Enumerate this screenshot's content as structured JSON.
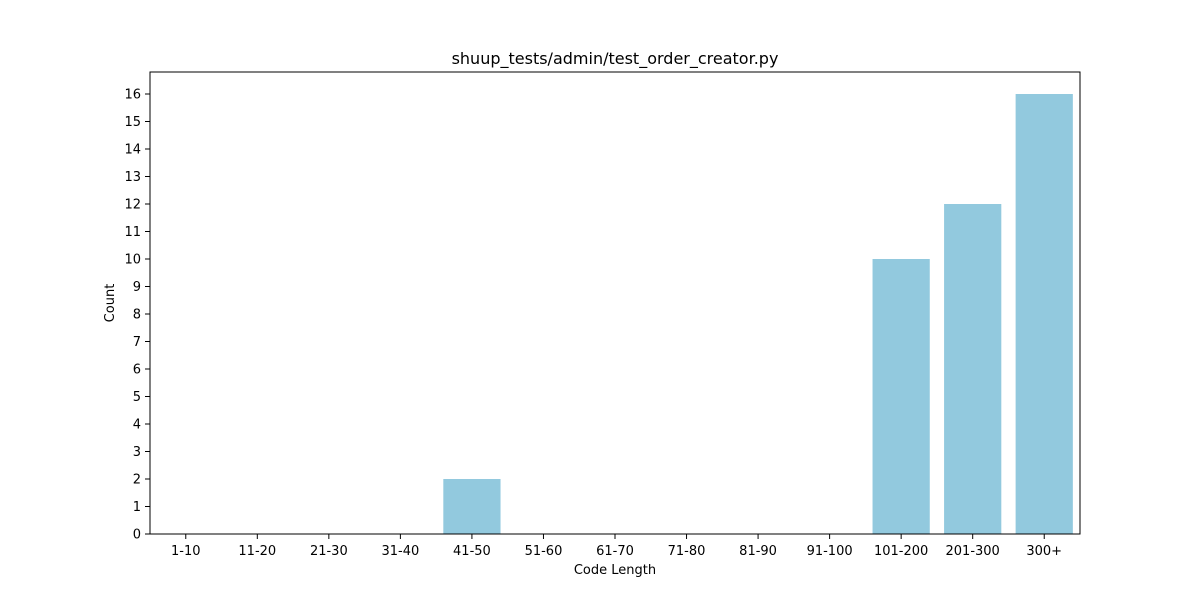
{
  "chart_data": {
    "type": "bar",
    "title": "shuup_tests/admin/test_order_creator.py",
    "xlabel": "Code Length",
    "ylabel": "Count",
    "categories": [
      "1-10",
      "11-20",
      "21-30",
      "31-40",
      "41-50",
      "51-60",
      "61-70",
      "71-80",
      "81-90",
      "91-100",
      "101-200",
      "201-300",
      "300+"
    ],
    "values": [
      0,
      0,
      0,
      0,
      2,
      0,
      0,
      0,
      0,
      0,
      10,
      12,
      16
    ],
    "ylim": [
      0,
      16.8
    ],
    "yticks": [
      0,
      1,
      2,
      3,
      4,
      5,
      6,
      7,
      8,
      9,
      10,
      11,
      12,
      13,
      14,
      15,
      16
    ],
    "bar_color": "#92c9de",
    "grid": false,
    "legend": "none"
  }
}
